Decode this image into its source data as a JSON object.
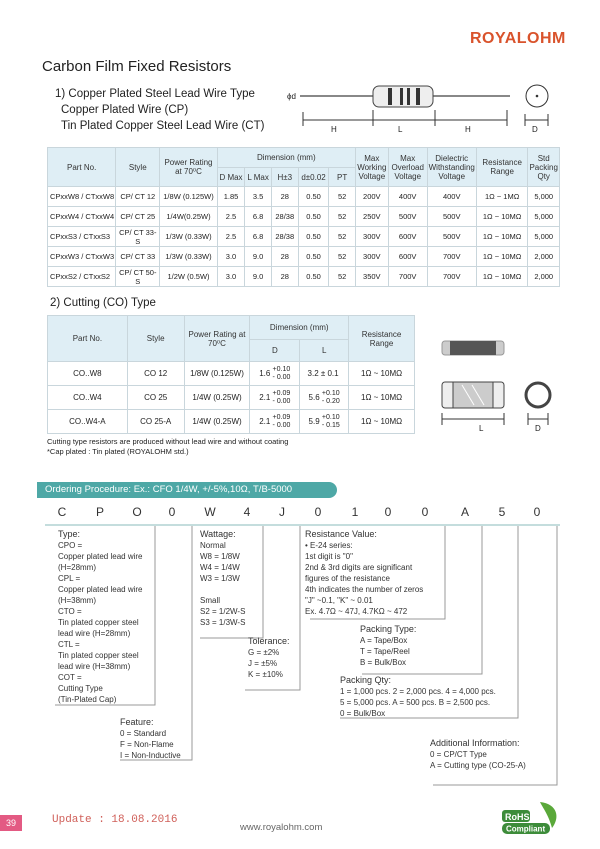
{
  "brand": "ROYALOHM",
  "title": "Carbon Film Fixed Resistors",
  "section1": {
    "lines": [
      "1) Copper Plated Steel Lead Wire Type",
      "Copper Plated Wire (CP)",
      "Tin Plated Copper Steel Lead Wire (CT)"
    ],
    "diagram_labels": {
      "d": "ϕd",
      "H": "H",
      "L": "L",
      "D": "D"
    }
  },
  "table1": {
    "headers": {
      "part": "Part No.",
      "style": "Style",
      "power": "Power Rating at 70⁰C",
      "dimension": "Dimension (mm)",
      "dmax": "D Max",
      "lmax": "L Max",
      "h": "H±3",
      "d": "d±0.02",
      "pt": "PT",
      "mwv": "Max Working Voltage",
      "mov": "Max Overload Voltage",
      "dwv": "Dielectric Withstanding Voltage",
      "range": "Resistance Range",
      "qty": "Std Packing Qty"
    },
    "rows": [
      [
        "CPxxW8 / CTxxW8",
        "CP/ CT 12",
        "1/8W (0.125W)",
        "1.85",
        "3.5",
        "28",
        "0.50",
        "52",
        "200V",
        "400V",
        "400V",
        "1Ω ~ 1MΩ",
        "5,000"
      ],
      [
        "CPxxW4 / CTxxW4",
        "CP/ CT 25",
        "1/4W(0.25W)",
        "2.5",
        "6.8",
        "28/38",
        "0.50",
        "52",
        "250V",
        "500V",
        "500V",
        "1Ω ~ 10MΩ",
        "5,000"
      ],
      [
        "CPxxS3 / CTxxS3",
        "CP/ CT 33-S",
        "1/3W (0.33W)",
        "2.5",
        "6.8",
        "28/38",
        "0.50",
        "52",
        "300V",
        "600V",
        "500V",
        "1Ω ~ 10MΩ",
        "5,000"
      ],
      [
        "CPxxW3 / CTxxW3",
        "CP/ CT 33",
        "1/3W (0.33W)",
        "3.0",
        "9.0",
        "28",
        "0.50",
        "52",
        "300V",
        "600V",
        "700V",
        "1Ω ~ 10MΩ",
        "2,000"
      ],
      [
        "CPxxS2 / CTxxS2",
        "CP/ CT 50-S",
        "1/2W (0.5W)",
        "3.0",
        "9.0",
        "28",
        "0.50",
        "52",
        "350V",
        "700V",
        "700V",
        "1Ω ~ 10MΩ",
        "2,000"
      ]
    ]
  },
  "section2": {
    "title": "2) Cutting (CO) Type",
    "diagram_labels": {
      "L": "L",
      "D": "D"
    }
  },
  "table2": {
    "headers": {
      "part": "Part No.",
      "style": "Style",
      "power": "Power Rating at 70⁰C",
      "dimension": "Dimension (mm)",
      "d": "D",
      "l": "L",
      "range": "Resistance Range"
    },
    "rows": [
      {
        "part": "CO..W8",
        "style": "CO 12",
        "power": "1/8W (0.125W)",
        "d": "1.6",
        "d_tol": [
          "+0.10",
          "- 0.00"
        ],
        "l": "3.2 ± 0.1",
        "l_tol": [
          "",
          ""
        ],
        "range": "1Ω ~ 10MΩ"
      },
      {
        "part": "CO..W4",
        "style": "CO 25",
        "power": "1/4W (0.25W)",
        "d": "2.1",
        "d_tol": [
          "+0.09",
          "- 0.00"
        ],
        "l": "5.6",
        "l_tol": [
          "+0.10",
          "- 0.20"
        ],
        "range": "1Ω ~ 10MΩ"
      },
      {
        "part": "CO..W4-A",
        "style": "CO 25-A",
        "power": "1/4W (0.25W)",
        "d": "2.1",
        "d_tol": [
          "+0.09",
          "- 0.00"
        ],
        "l": "5.9",
        "l_tol": [
          "+0.10",
          "- 0.15"
        ],
        "range": "1Ω ~ 10MΩ"
      }
    ],
    "notes": [
      "Cutting type resistors are produced without lead wire and without coating",
      "*Cap plated : Tin plated (ROYALOHM std.)"
    ]
  },
  "ordering": {
    "banner": "Ordering Procedure: Ex.: CFO 1/4W, +/-5%,10Ω, T/B-5000",
    "code": [
      "C",
      "P",
      "O",
      "0",
      "W",
      "4",
      "J",
      "0",
      "1",
      "0",
      "0",
      "A",
      "5",
      "0"
    ],
    "type": {
      "title": "Type:",
      "lines": [
        "CPO =",
        "Copper plated lead wire",
        "(H=28mm)",
        "CPL =",
        "Copper plated lead wire",
        "(H=38mm)",
        "CTO =",
        "Tin plated copper steel",
        "lead wire (H=28mm)",
        "CTL =",
        "Tin plated copper steel",
        "lead wire (H=38mm)",
        "COT =",
        "Cutting Type",
        "(Tin-Plated Cap)"
      ]
    },
    "feature": {
      "title": "Feature:",
      "lines": [
        "0 = Standard",
        "F = Non-Flame",
        "I = Non-Inductive"
      ]
    },
    "wattage": {
      "title": "Wattage:",
      "lines": [
        "Normal",
        "W8 = 1/8W",
        "W4 = 1/4W",
        "W3 = 1/3W",
        "",
        "Small",
        "S2 = 1/2W-S",
        "S3 = 1/3W-S"
      ]
    },
    "tolerance": {
      "title": "Tolerance:",
      "lines": [
        "G = ±2%",
        "J =  ±5%",
        "K =  ±10%"
      ]
    },
    "resistance": {
      "title": "Resistance Value:",
      "lines": [
        "• E-24 series:",
        "1st digit is \"0\"",
        "2nd & 3rd digits are significant",
        "figures of the resistance",
        "4th indicates the number of zeros",
        "\"J\" ~0.1, \"K\" ~ 0.01",
        "Ex. 4.7Ω ~ 47J, 4.7KΩ ~ 472"
      ]
    },
    "packing_type": {
      "title": "Packing Type:",
      "lines": [
        "A = Tape/Box",
        "T = Tape/Reel",
        "B = Bulk/Box"
      ]
    },
    "packing_qty": {
      "title": "Packing Qty:",
      "lines": [
        "1 = 1,000 pcs.  2 = 2,000 pcs.  4 = 4,000 pcs.",
        "5 = 5,000 pcs. A = 500 pcs.    B = 2,500 pcs.",
        "0 = Bulk/Box"
      ]
    },
    "additional": {
      "title": "Additional Information:",
      "lines": [
        "0 = CP/CT Type",
        "A = Cutting type (CO-25-A)"
      ]
    }
  },
  "footer": {
    "page": "39",
    "update": "Update : 18.08.2016",
    "website": "www.royalohm.com",
    "rohs": [
      "RoHS",
      "Compliant"
    ]
  },
  "colors": {
    "brand": "#d9532c",
    "banner": "#4ea8a6",
    "header_bg": "#dfeef5",
    "page_tab": "#e35a83"
  }
}
